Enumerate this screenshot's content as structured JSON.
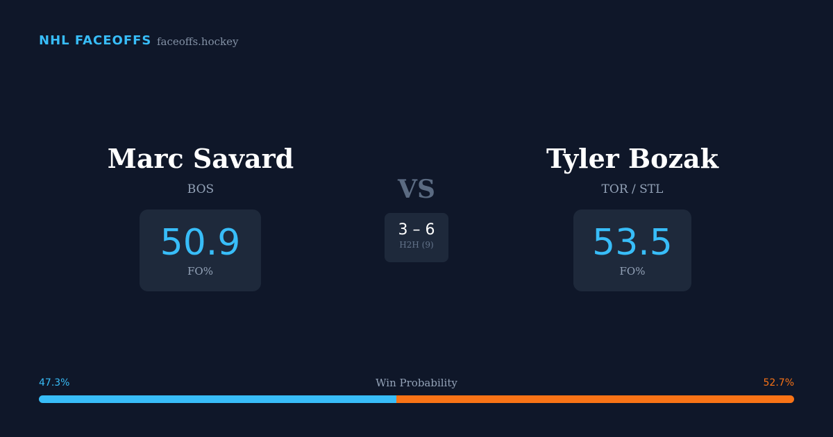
{
  "header": {
    "brand": "NHL FACEOFFS",
    "site": "faceoffs.hockey"
  },
  "players": [
    {
      "name": "Marc Savard",
      "team": "BOS",
      "fo_pct": 50.9,
      "fo_label": "FO%"
    },
    {
      "name": "Tyler Bozak",
      "team": "TOR / STL",
      "fo_pct": 53.5,
      "fo_label": "FO%"
    }
  ],
  "vs": "VS",
  "h2h": {
    "score": "3 – 6",
    "label": "H2H (9)"
  },
  "win_probability": {
    "label": "Win Probability",
    "left": {
      "value": 47.3,
      "label": "47.3%"
    },
    "right": {
      "value": 52.7,
      "label": "52.7%"
    }
  }
}
